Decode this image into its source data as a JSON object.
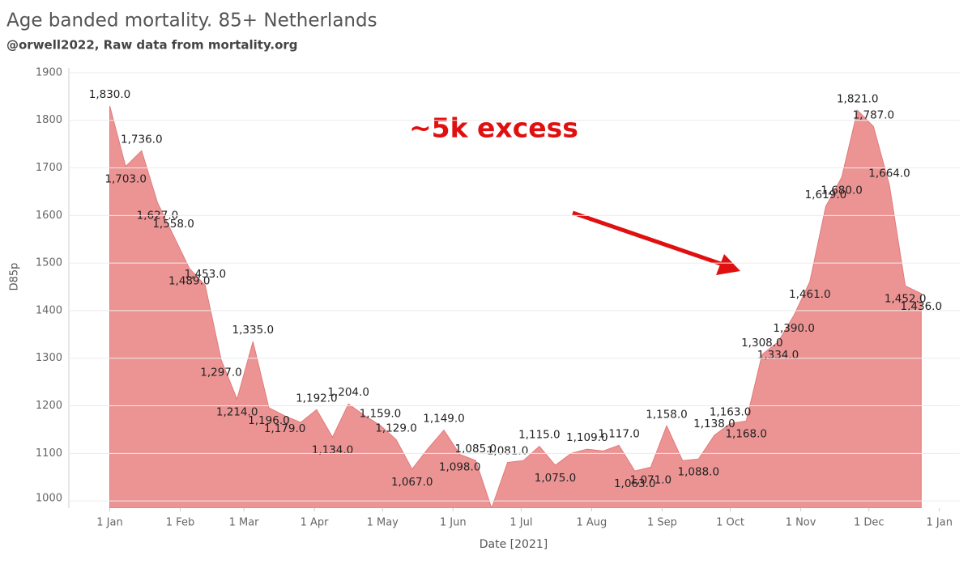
{
  "chart_data": {
    "type": "area",
    "title": "Age banded mortality. 85+ Netherlands",
    "subtitle": "@orwell2022,  Raw data from mortality.org",
    "x_label": "Date [2021]",
    "y_label": "D85p",
    "annotation": "~5k excess",
    "color": "#ec9494",
    "grid": true,
    "x": [
      "2021-01-01",
      "2021-01-08",
      "2021-01-15",
      "2021-01-22",
      "2021-01-29",
      "2021-02-05",
      "2021-02-12",
      "2021-02-19",
      "2021-02-26",
      "2021-03-05",
      "2021-03-12",
      "2021-03-19",
      "2021-03-26",
      "2021-04-02",
      "2021-04-09",
      "2021-04-16",
      "2021-04-23",
      "2021-04-30",
      "2021-05-07",
      "2021-05-14",
      "2021-05-21",
      "2021-05-28",
      "2021-06-04",
      "2021-06-11",
      "2021-06-18",
      "2021-06-25",
      "2021-07-02",
      "2021-07-09",
      "2021-07-16",
      "2021-07-23",
      "2021-07-30",
      "2021-08-06",
      "2021-08-13",
      "2021-08-20",
      "2021-08-27",
      "2021-09-03",
      "2021-09-10",
      "2021-09-17",
      "2021-09-24",
      "2021-10-01",
      "2021-10-08",
      "2021-10-15",
      "2021-10-22",
      "2021-10-29",
      "2021-11-05",
      "2021-11-12",
      "2021-11-19",
      "2021-11-26",
      "2021-12-03",
      "2021-12-10",
      "2021-12-17",
      "2021-12-24"
    ],
    "values": [
      1830,
      1703,
      1736,
      1627,
      1558,
      1489,
      1453,
      1297,
      1214,
      1335,
      1196,
      1179,
      1165,
      1192,
      1134,
      1204,
      1180,
      1159,
      1129,
      1067,
      1110,
      1149,
      1098,
      1085,
      985,
      1081,
      1085,
      1115,
      1075,
      1100,
      1109,
      1105,
      1117,
      1063,
      1071,
      1158,
      1085,
      1088,
      1138,
      1163,
      1168,
      1308,
      1334,
      1390,
      1461,
      1619,
      1680,
      1821,
      1787,
      1664,
      1452,
      1436
    ],
    "value_labels": [
      "1,830.0",
      "1,703.0",
      "1,736.0",
      "1,627.0",
      "1,558.0",
      "1,489.0",
      "1,453.0",
      "1,297.0",
      "1,214.0",
      "1,335.0",
      "1,196.0",
      "1,179.0",
      null,
      "1,192.0",
      "1,134.0",
      "1,204.0",
      null,
      "1,159.0",
      "1,129.0",
      "1,067.0",
      null,
      "1,149.0",
      "1,098.0",
      "1,085.0",
      null,
      "1,081.0",
      null,
      "1,115.0",
      "1,075.0",
      null,
      "1,109.0",
      null,
      "1,117.0",
      "1,063.0",
      "1,071.0",
      "1,158.0",
      null,
      "1,088.0",
      "1,138.0",
      "1,163.0",
      "1,168.0",
      "1,308.0",
      "1,334.0",
      "1,390.0",
      "1,461.0",
      "1,619.0",
      "1,680.0",
      "1,821.0",
      "1,787.0",
      "1,664.0",
      "1,452.0",
      "1,436.0"
    ],
    "xlim": [
      "2020-12-14",
      "2022-01-10"
    ],
    "xticks": [
      {
        "value": "2021-01-01",
        "label": "1 Jan"
      },
      {
        "value": "2021-02-01",
        "label": "1 Feb"
      },
      {
        "value": "2021-03-01",
        "label": "1 Mar"
      },
      {
        "value": "2021-04-01",
        "label": "1 Apr"
      },
      {
        "value": "2021-05-01",
        "label": "1 May"
      },
      {
        "value": "2021-06-01",
        "label": "1 Jun"
      },
      {
        "value": "2021-07-01",
        "label": "1 Jul"
      },
      {
        "value": "2021-08-01",
        "label": "1 Aug"
      },
      {
        "value": "2021-09-01",
        "label": "1 Sep"
      },
      {
        "value": "2021-10-01",
        "label": "1 Oct"
      },
      {
        "value": "2021-11-01",
        "label": "1 Nov"
      },
      {
        "value": "2021-12-01",
        "label": "1 Dec"
      },
      {
        "value": "2022-01-01",
        "label": "1 Jan"
      }
    ],
    "ylim": [
      985,
      1910
    ],
    "yticks": [
      1000,
      1100,
      1200,
      1300,
      1400,
      1500,
      1600,
      1700,
      1800,
      1900
    ]
  }
}
